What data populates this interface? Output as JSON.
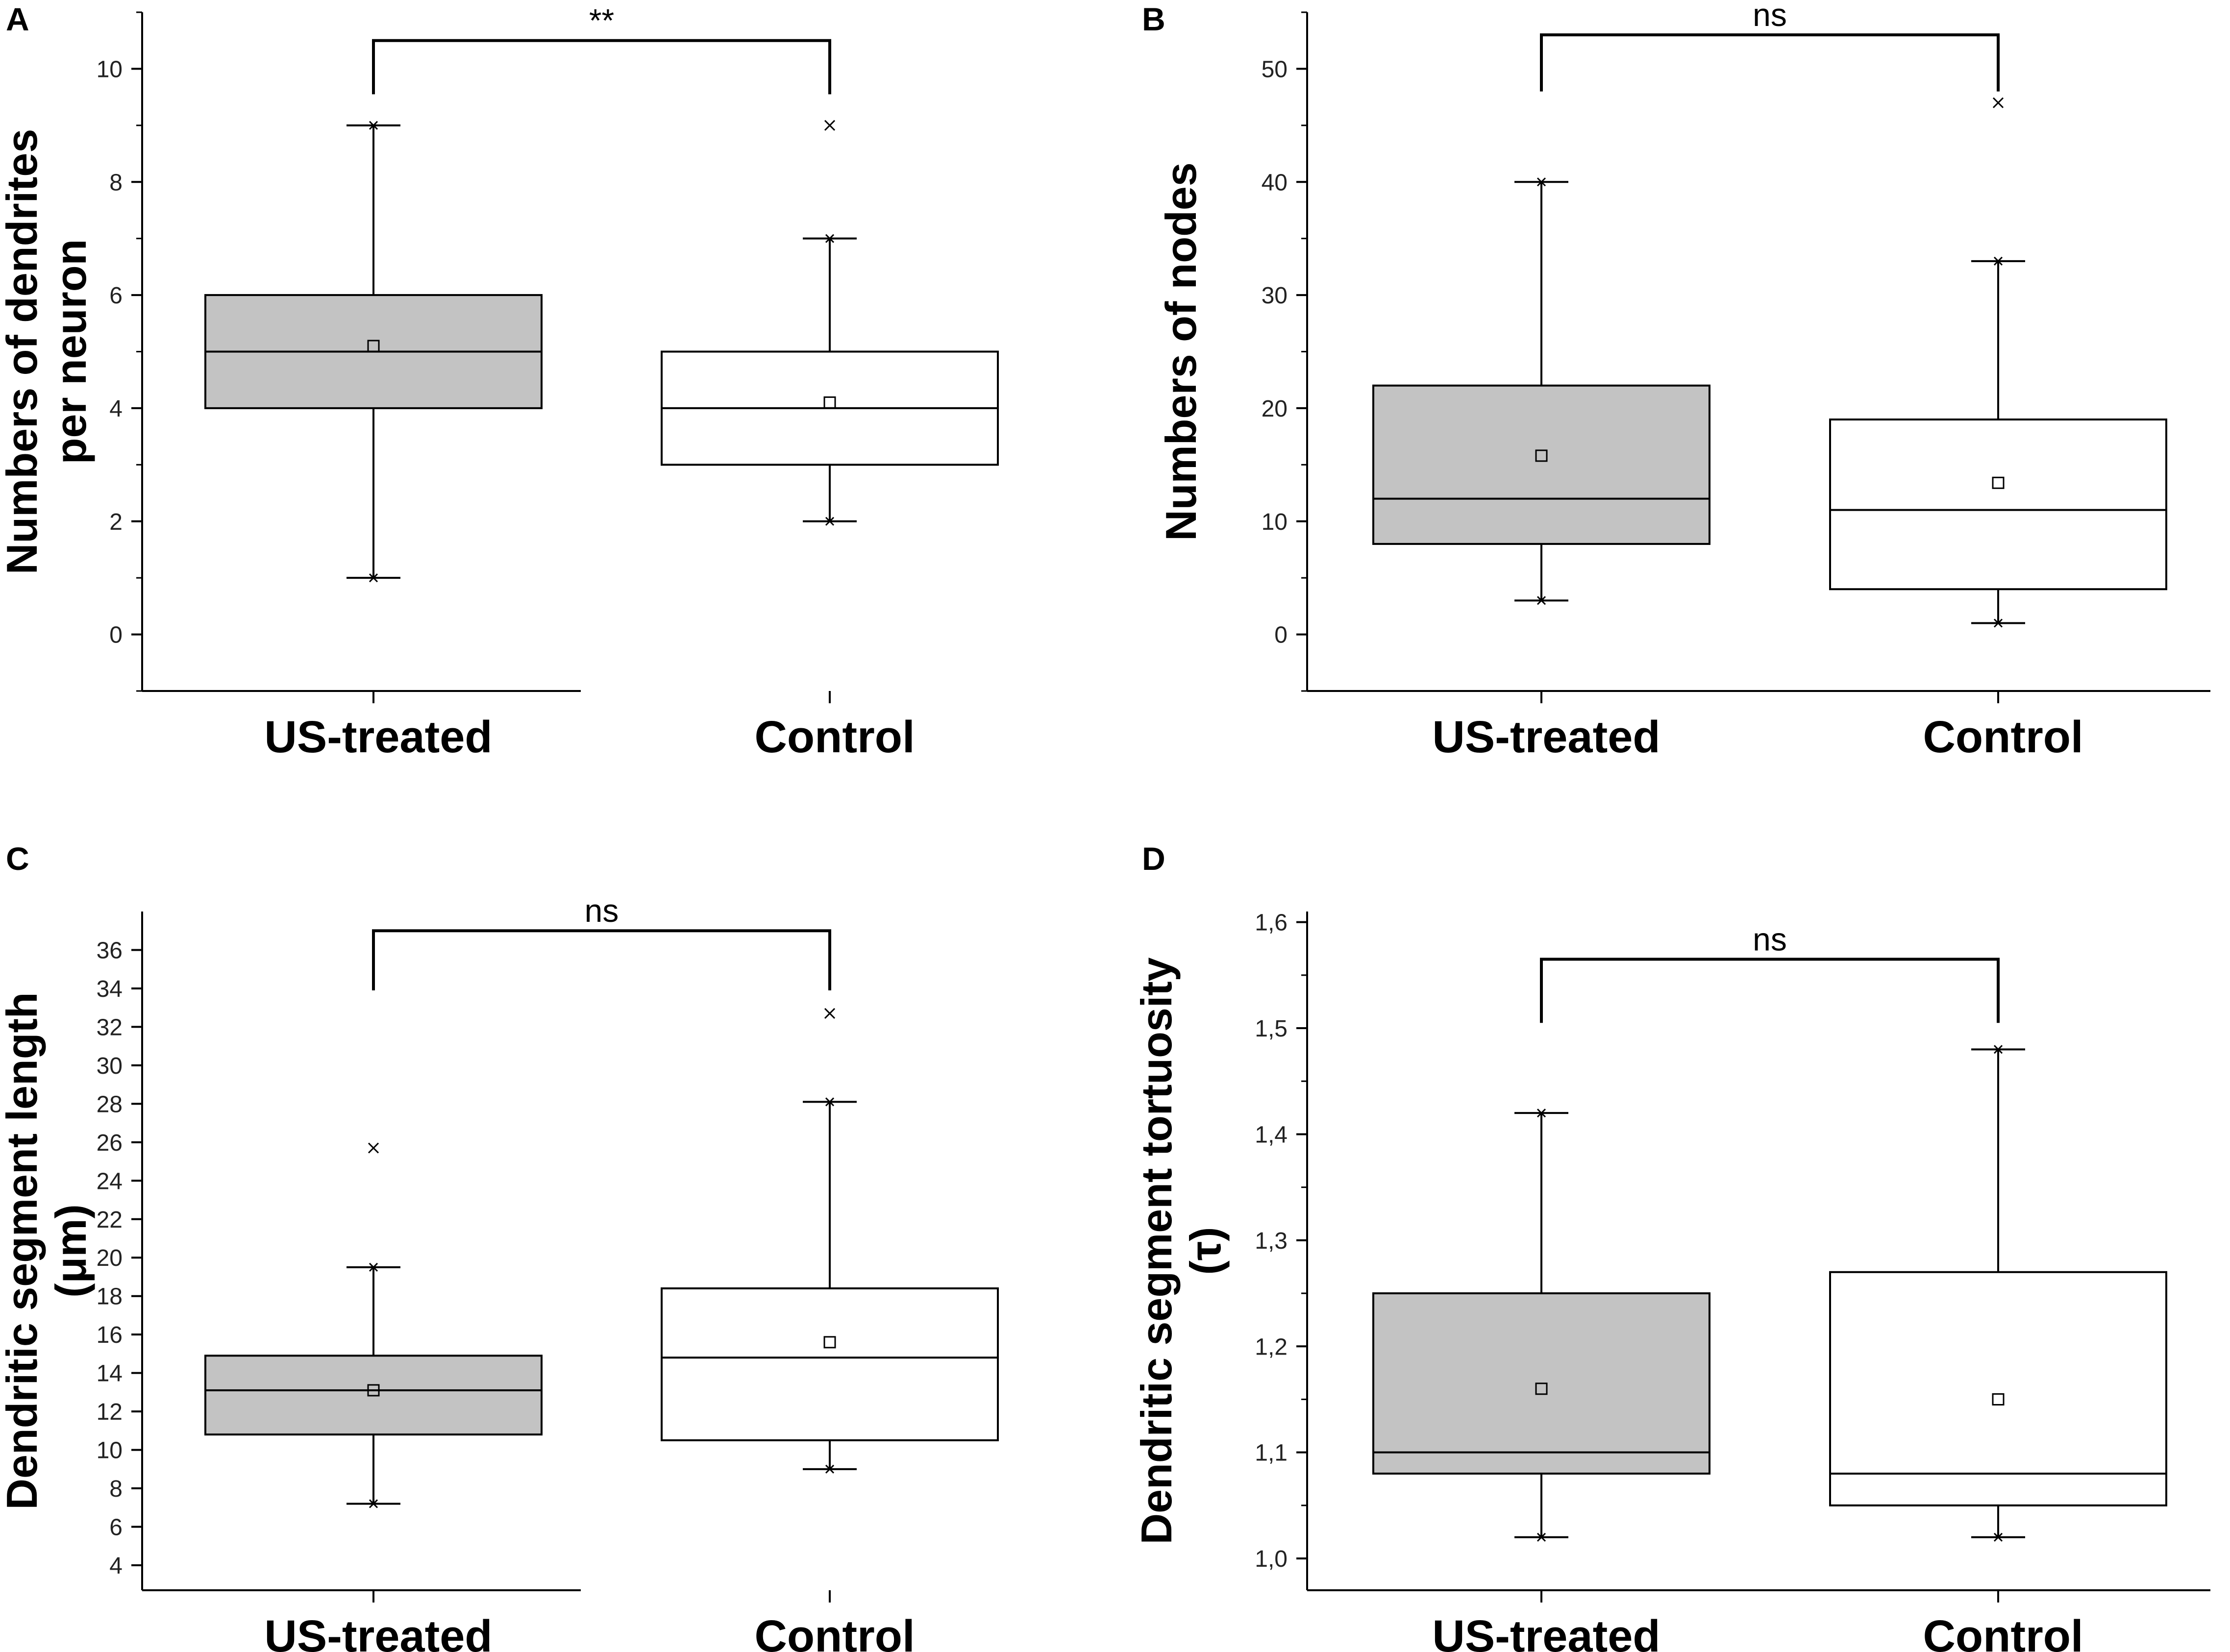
{
  "chart_data": [
    {
      "panel": "A",
      "type": "box",
      "ylabel_lines": [
        "Numbers of dendrites",
        "per neuron"
      ],
      "categories": [
        "US-treated",
        "Control"
      ],
      "yticks": [
        "0",
        "2",
        "4",
        "6",
        "8",
        "10"
      ],
      "ytick_values": [
        0,
        2,
        4,
        6,
        8,
        10
      ],
      "ylim": [
        -1,
        11
      ],
      "minor_step": 1,
      "series": [
        {
          "name": "US-treated",
          "fill": "#c3c3c3",
          "whisker_low": 1,
          "q1": 4,
          "median": 5,
          "q3": 6,
          "whisker_high": 9,
          "mean": 5.1,
          "outliers": []
        },
        {
          "name": "Control",
          "fill": "#ffffff",
          "whisker_low": 2,
          "q1": 3,
          "median": 4,
          "q3": 5,
          "whisker_high": 7,
          "mean": 4.1,
          "outliers": [
            9
          ]
        }
      ],
      "significance": {
        "label": "**",
        "y": 10.5,
        "drop": 0.95
      }
    },
    {
      "panel": "B",
      "type": "box",
      "ylabel_lines": [
        "Numbers of nodes"
      ],
      "categories": [
        "US-treated",
        "Control"
      ],
      "yticks": [
        "0",
        "10",
        "20",
        "30",
        "40",
        "50"
      ],
      "ytick_values": [
        0,
        10,
        20,
        30,
        40,
        50
      ],
      "ylim": [
        -5,
        55
      ],
      "minor_step": 5,
      "series": [
        {
          "name": "US-treated",
          "fill": "#c3c3c3",
          "whisker_low": 3,
          "q1": 8,
          "median": 12,
          "q3": 22,
          "whisker_high": 40,
          "mean": 15.8,
          "outliers": []
        },
        {
          "name": "Control",
          "fill": "#ffffff",
          "whisker_low": 1,
          "q1": 4,
          "median": 11,
          "q3": 19,
          "whisker_high": 33,
          "mean": 13.4,
          "outliers": [
            47
          ]
        }
      ],
      "significance": {
        "label": "ns",
        "y": 53,
        "drop": 5
      }
    },
    {
      "panel": "C",
      "type": "box",
      "ylabel_lines": [
        "Dendritic segment length",
        "(μm)"
      ],
      "categories": [
        "US-treated",
        "Control"
      ],
      "yticks": [
        "4",
        "6",
        "8",
        "10",
        "12",
        "14",
        "16",
        "18",
        "20",
        "22",
        "24",
        "26",
        "28",
        "30",
        "32",
        "34",
        "36"
      ],
      "ytick_values": [
        4,
        6,
        8,
        10,
        12,
        14,
        16,
        18,
        20,
        22,
        24,
        26,
        28,
        30,
        32,
        34,
        36
      ],
      "ylim": [
        2.7,
        38
      ],
      "minor_step": 0,
      "series": [
        {
          "name": "US-treated",
          "fill": "#c3c3c3",
          "whisker_low": 7.2,
          "q1": 10.8,
          "median": 13.1,
          "q3": 14.9,
          "whisker_high": 19.5,
          "mean": 13.1,
          "outliers": [
            25.7
          ]
        },
        {
          "name": "Control",
          "fill": "#ffffff",
          "whisker_low": 9,
          "q1": 10.5,
          "median": 14.8,
          "q3": 18.4,
          "whisker_high": 28.1,
          "mean": 15.6,
          "outliers": [
            32.7
          ]
        }
      ],
      "significance": {
        "label": "ns",
        "y": 37,
        "drop": 3.1
      }
    },
    {
      "panel": "D",
      "type": "box",
      "ylabel_lines": [
        "Dendritic segment tortuosity",
        "(τ)"
      ],
      "categories": [
        "US-treated",
        "Control"
      ],
      "yticks": [
        "1,0",
        "1,1",
        "1,2",
        "1,3",
        "1,4",
        "1,5",
        "1,6"
      ],
      "ytick_values": [
        1.0,
        1.1,
        1.2,
        1.3,
        1.4,
        1.5,
        1.6
      ],
      "ylim": [
        0.97,
        1.61
      ],
      "minor_step": 0.05,
      "series": [
        {
          "name": "US-treated",
          "fill": "#c3c3c3",
          "whisker_low": 1.02,
          "q1": 1.08,
          "median": 1.1,
          "q3": 1.25,
          "whisker_high": 1.42,
          "mean": 1.16,
          "outliers": []
        },
        {
          "name": "Control",
          "fill": "#ffffff",
          "whisker_low": 1.02,
          "q1": 1.05,
          "median": 1.08,
          "q3": 1.27,
          "whisker_high": 1.48,
          "mean": 1.15,
          "outliers": []
        }
      ],
      "significance": {
        "label": "ns",
        "y": 1.565,
        "drop": 0.06
      }
    }
  ]
}
